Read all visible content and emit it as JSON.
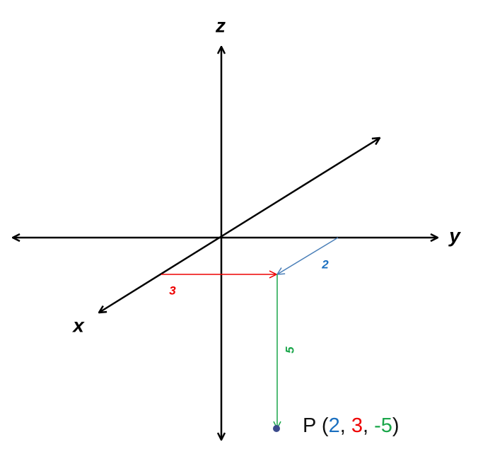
{
  "axes": {
    "x": "x",
    "y": "y",
    "z": "z"
  },
  "segments": [
    {
      "label": "3"
    },
    {
      "label": "2"
    },
    {
      "label": "5"
    }
  ],
  "point": {
    "name": "P",
    "open": "(",
    "coords": [
      "2",
      "3",
      "-5"
    ],
    "separator": ",",
    "close": ")"
  }
}
